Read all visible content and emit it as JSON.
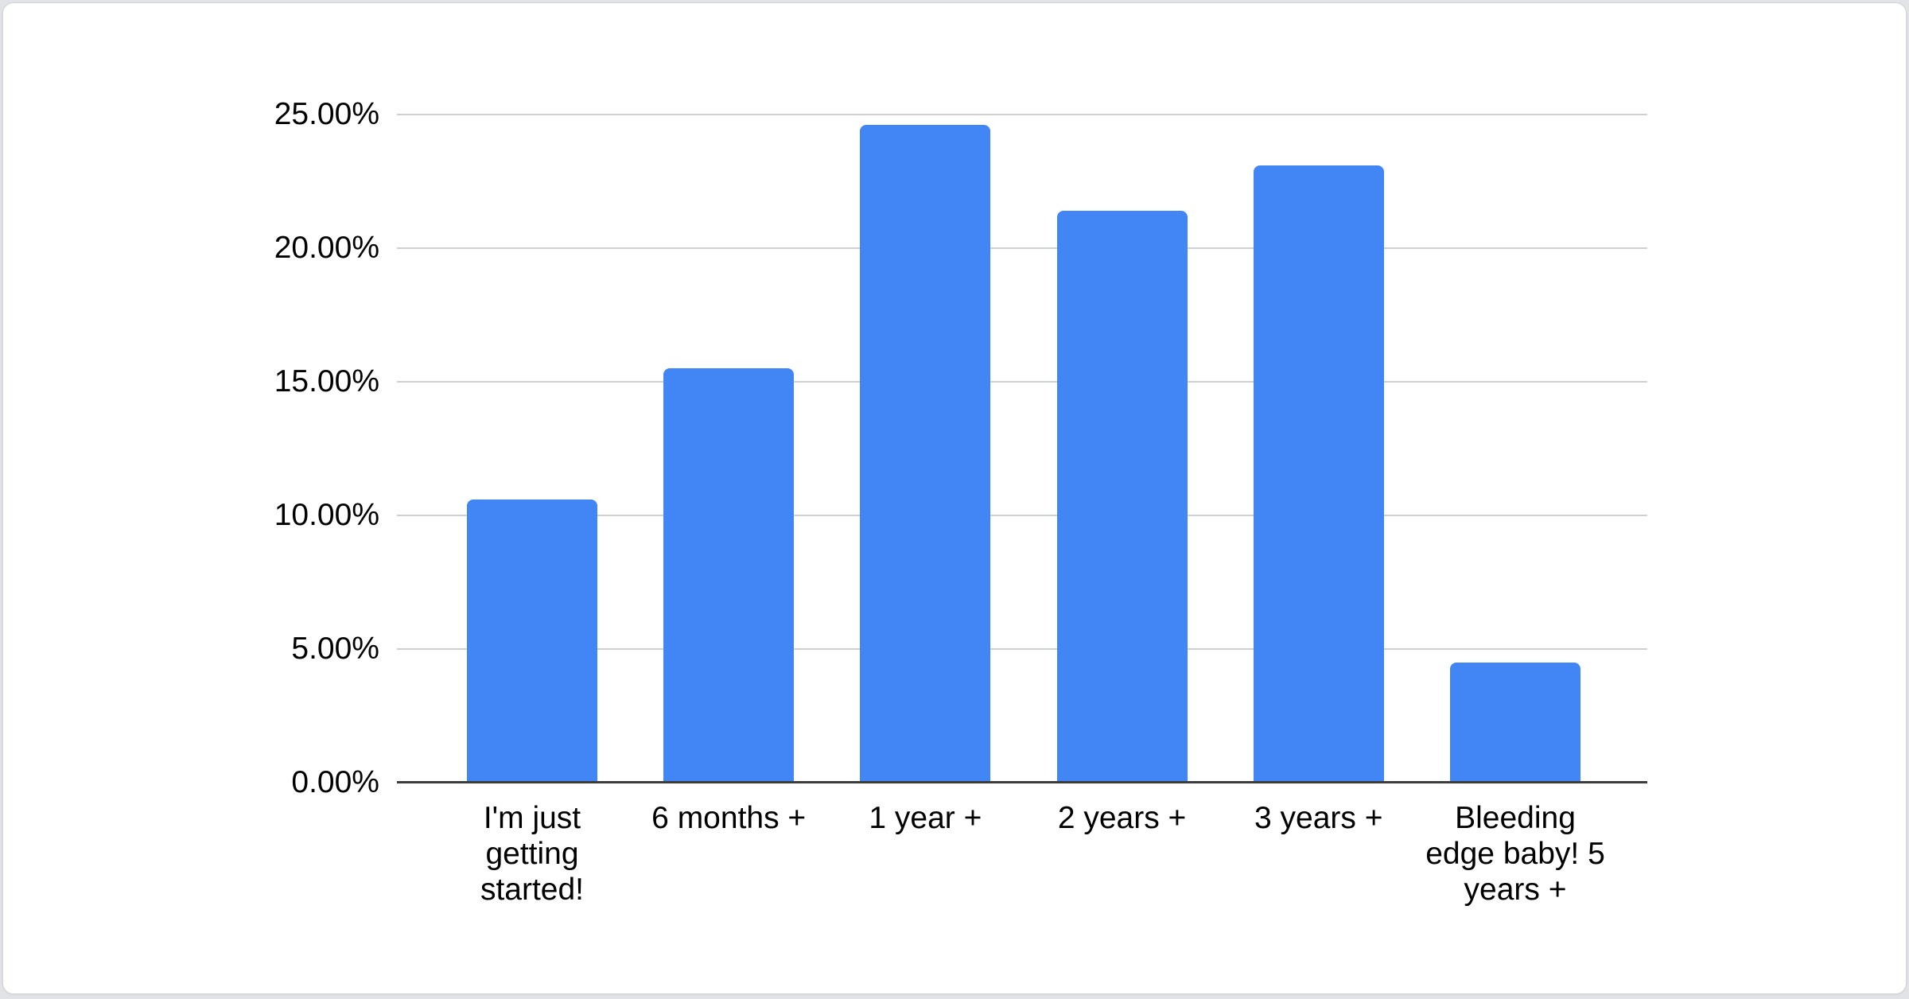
{
  "page": {
    "background_color": "#e1e3e6"
  },
  "card": {
    "background_color": "#ffffff"
  },
  "chart_data": {
    "type": "bar",
    "categories": [
      "I'm just getting started!",
      "6 months +",
      "1 year +",
      "2 years +",
      "3 years +",
      "Bleeding edge baby! 5 years +"
    ],
    "values": [
      10.6,
      15.5,
      24.6,
      21.4,
      23.1,
      4.5
    ],
    "unit": "%",
    "xlabel": "",
    "ylabel": "",
    "ylim": [
      0,
      25
    ],
    "y_tick_interval": 5,
    "y_tick_labels_top_to_bottom": [
      "25.00%",
      "20.00%",
      "15.00%",
      "10.00%",
      "5.00%",
      "0.00%"
    ],
    "grid": true,
    "legend_position": "none",
    "bar_color": "#4285f4",
    "gridline_color": "#cfd0d2",
    "axis_line_color": "#3c3c3c",
    "label_color": "#000000"
  }
}
